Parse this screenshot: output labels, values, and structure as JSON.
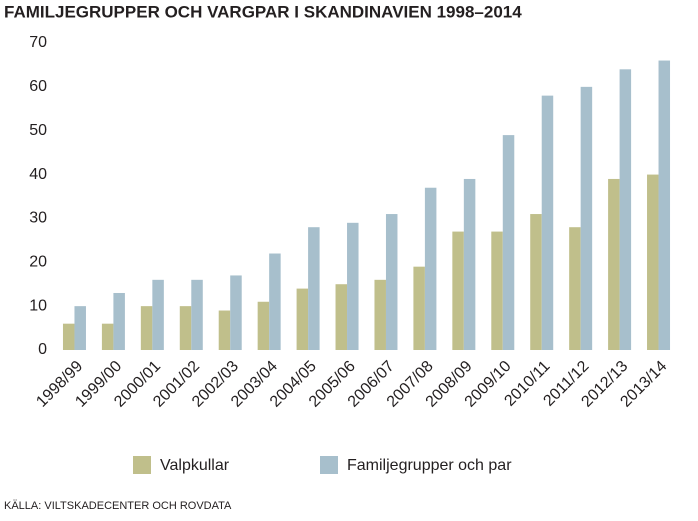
{
  "chart_data": {
    "type": "bar",
    "title": "FAMILJEGRUPPER OCH VARGPAR I SKANDINAVIEN 1998–2014",
    "source": "KÄLLA: VILTSKADECENTER OCH ROVDATA",
    "categories": [
      "1998/99",
      "1999/00",
      "2000/01",
      "2001/02",
      "2002/03",
      "2003/04",
      "2004/05",
      "2005/06",
      "2006/07",
      "2007/08",
      "2008/09",
      "2009/10",
      "2010/11",
      "2011/12",
      "2012/13",
      "2013/14"
    ],
    "series": [
      {
        "name": "Valpkullar",
        "color": "#c0bf8b",
        "values": [
          6,
          6,
          10,
          10,
          9,
          11,
          14,
          15,
          16,
          19,
          27,
          27,
          31,
          28,
          39,
          40
        ]
      },
      {
        "name": "Familjegrupper och par",
        "color": "#a7bfcc",
        "values": [
          10,
          13,
          16,
          16,
          17,
          22,
          28,
          29,
          31,
          37,
          39,
          49,
          58,
          60,
          64,
          66
        ]
      }
    ],
    "ylim": [
      0,
      70
    ],
    "yticks": [
      0,
      10,
      20,
      30,
      40,
      50,
      60,
      70
    ]
  }
}
